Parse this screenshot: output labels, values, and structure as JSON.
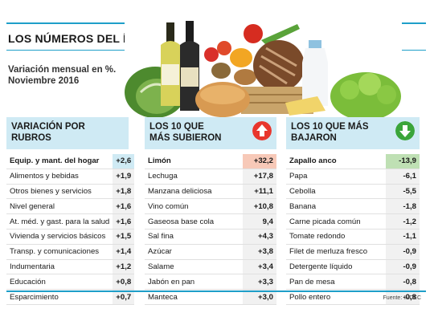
{
  "title": "LOS NÚMEROS DEL ÍNDICE",
  "subtitle": "Variación mensual en %. Noviembre 2016",
  "source": "Fuente: INDEC",
  "colors": {
    "accent": "#1f9fc9",
    "header_bg": "#cfeaf4",
    "up": "#e8362d",
    "down": "#3aa53a",
    "highlight_up": "#f7c9b8",
    "highlight_down": "#bfe0b4",
    "highlight_rubro": "#cfeaf4"
  },
  "icons": {
    "up": "up-arrow-icon",
    "down": "down-arrow-icon"
  },
  "chart_data": [
    {
      "type": "table",
      "title": "VARIACIÓN POR RUBROS",
      "categories": [
        "Equip. y mant. del hogar",
        "Alimentos y bebidas",
        "Otros bienes y servicios",
        "Nivel general",
        "At. méd. y gast. para la salud",
        "Vivienda y servicios básicos",
        "Transp. y comunicaciones",
        "Indumentaria",
        "Educación",
        "Esparcimiento"
      ],
      "labels": [
        "+2,6",
        "+1,9",
        "+1,8",
        "+1,6",
        "+1,6",
        "+1,5",
        "+1,4",
        "+1,2",
        "+0,8",
        "+0,7"
      ],
      "values": [
        2.6,
        1.9,
        1.8,
        1.6,
        1.6,
        1.5,
        1.4,
        1.2,
        0.8,
        0.7
      ]
    },
    {
      "type": "table",
      "title": "LOS 10 QUE MÁS SUBIERON",
      "categories": [
        "Limón",
        "Lechuga",
        "Manzana deliciosa",
        "Vino común",
        "Gaseosa base cola",
        "Sal fina",
        "Azúcar",
        "Salame",
        "Jabón en pan",
        "Manteca"
      ],
      "labels": [
        "+32,2",
        "+17,8",
        "+11,1",
        "+10,8",
        "9,4",
        "+4,3",
        "+3,8",
        "+3,4",
        "+3,3",
        "+3,0"
      ],
      "values": [
        32.2,
        17.8,
        11.1,
        10.8,
        9.4,
        4.3,
        3.8,
        3.4,
        3.3,
        3.0
      ]
    },
    {
      "type": "table",
      "title": "LOS 10 QUE MÁS BAJARON",
      "categories": [
        "Zapallo anco",
        "Papa",
        "Cebolla",
        "Banana",
        "Carne picada común",
        "Tomate redondo",
        "Filet de merluza fresco",
        "Detergente líquido",
        "Pan de mesa",
        "Pollo entero"
      ],
      "labels": [
        "-13,9",
        "-6,1",
        "-5,5",
        "-1,8",
        "-1,2",
        "-1,1",
        "-0,9",
        "-0,9",
        "-0,8",
        "-0,8"
      ],
      "values": [
        -13.9,
        -6.1,
        -5.5,
        -1.8,
        -1.2,
        -1.1,
        -0.9,
        -0.9,
        -0.8,
        -0.8
      ]
    }
  ]
}
